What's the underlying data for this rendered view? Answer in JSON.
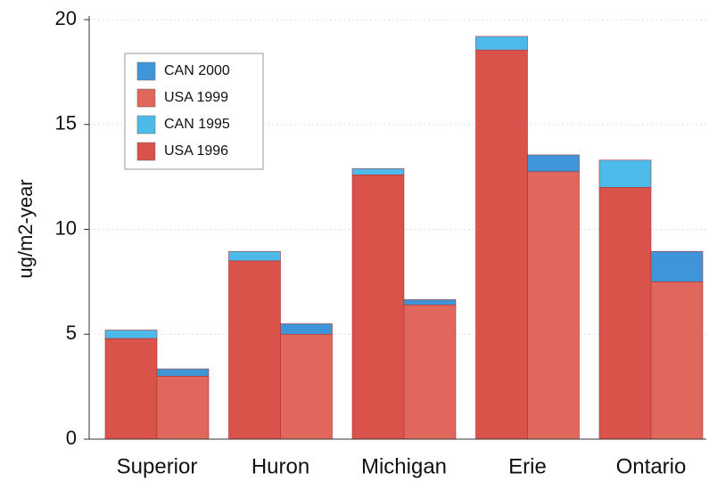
{
  "chart_data": {
    "type": "stacked-bar",
    "y_label": "ug/m2-year",
    "categories": [
      "Superior",
      "Huron",
      "Michigan",
      "Erie",
      "Ontario"
    ],
    "series": [
      {
        "name": "CAN 2000",
        "color": "#3e96d9",
        "stack": 1,
        "values": [
          0.35,
          0.5,
          0.25,
          0.8,
          1.45
        ]
      },
      {
        "name": "USA 1999",
        "color": "#e0675c",
        "stack": 1,
        "values": [
          3.0,
          5.0,
          6.4,
          12.75,
          7.5
        ]
      },
      {
        "name": "CAN 1995",
        "color": "#4cbbea",
        "stack": 0,
        "values": [
          0.4,
          0.45,
          0.3,
          0.65,
          1.3
        ]
      },
      {
        "name": "USA 1996",
        "color": "#d9534b",
        "stack": 0,
        "values": [
          4.8,
          8.5,
          12.6,
          18.55,
          12.0
        ]
      }
    ],
    "ylim": [
      0,
      20
    ],
    "yticks": [
      0,
      5,
      10,
      15,
      20
    ],
    "grid": true,
    "legend": "upper left"
  }
}
